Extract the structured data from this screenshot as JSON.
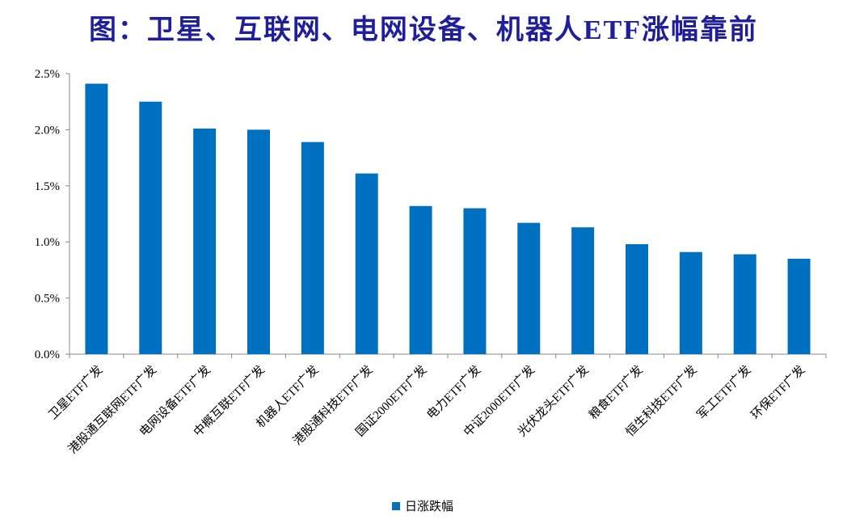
{
  "chart_data": {
    "type": "bar",
    "title": "图：卫星、互联网、电网设备、机器人ETF涨幅靠前",
    "categories": [
      "卫星ETF广发",
      "港股通互联网ETF广发",
      "电网设备ETF广发",
      "中概互联ETF广发",
      "机器人ETF广发",
      "港股通科技ETF广发",
      "国证2000ETF广发",
      "电力ETF广发",
      "中证2000ETF广发",
      "光伏龙头ETF广发",
      "粮食ETF广发",
      "恒生科技ETF广发",
      "军工ETF广发",
      "环保ETF广发"
    ],
    "series": [
      {
        "name": "日涨跌幅",
        "color": "#0070c0",
        "values": [
          2.41,
          2.25,
          2.01,
          2.0,
          1.89,
          1.61,
          1.32,
          1.3,
          1.17,
          1.13,
          0.98,
          0.91,
          0.89,
          0.85
        ]
      }
    ],
    "ylim": [
      0,
      2.5
    ],
    "yticks": [
      {
        "value": 0,
        "label": "0.0%"
      },
      {
        "value": 0.5,
        "label": "0.5%"
      },
      {
        "value": 1,
        "label": "1.0%"
      },
      {
        "value": 1.5,
        "label": "1.5%"
      },
      {
        "value": 2,
        "label": "2.0%"
      },
      {
        "value": 2.5,
        "label": "2.5%"
      }
    ],
    "grid": false
  }
}
